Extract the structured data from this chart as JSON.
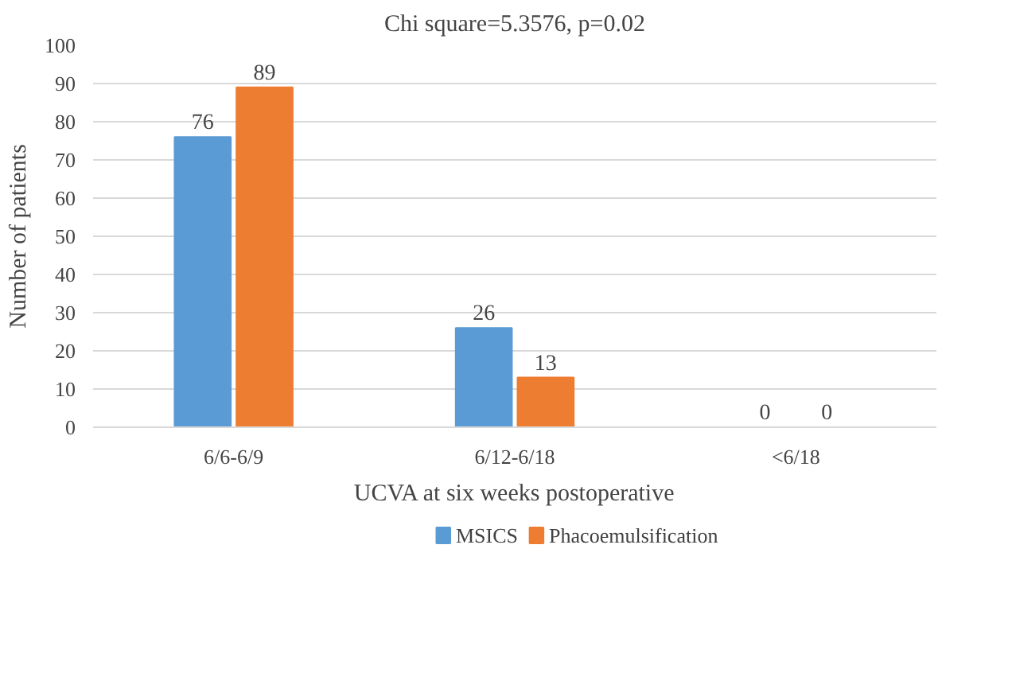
{
  "chart_data": {
    "type": "bar",
    "title": "Chi square=5.3576, p=0.02",
    "xlabel": "UCVA at six weeks postoperative",
    "ylabel": "Number of patients",
    "categories": [
      "6/6-6/9",
      "6/12-6/18",
      "<6/18"
    ],
    "series": [
      {
        "name": "MSICS",
        "color": "#5b9bd5",
        "values": [
          76,
          26,
          0
        ]
      },
      {
        "name": "Phacoemulsification",
        "color": "#ed7d31",
        "values": [
          89,
          13,
          0
        ]
      }
    ],
    "ylim": [
      0,
      100
    ],
    "yticks": [
      0,
      10,
      20,
      30,
      40,
      50,
      60,
      70,
      80,
      90,
      100
    ],
    "grid": "y",
    "legend": "bottom",
    "data_labels": true
  }
}
